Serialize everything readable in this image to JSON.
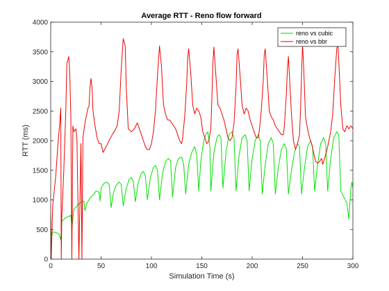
{
  "chart_data": {
    "type": "line",
    "title": "Average RTT - Reno flow forward",
    "xlabel": "Simulation Time (s)",
    "ylabel": "RTT (ms)",
    "xlim": [
      0,
      300
    ],
    "ylim": [
      0,
      4000
    ],
    "xticks": [
      0,
      50,
      100,
      150,
      200,
      250,
      300
    ],
    "yticks": [
      0,
      500,
      1000,
      1500,
      2000,
      2500,
      3000,
      3500,
      4000
    ],
    "grid": false,
    "legend_position": "top-right",
    "series": [
      {
        "name": "reno vs cubic",
        "color": "#00e000",
        "points": [
          [
            0,
            480
          ],
          [
            1,
            380
          ],
          [
            2,
            460
          ],
          [
            5,
            450
          ],
          [
            8,
            430
          ],
          [
            10,
            330
          ],
          [
            11,
            640
          ],
          [
            15,
            700
          ],
          [
            18,
            720
          ],
          [
            20,
            740
          ],
          [
            21,
            520
          ],
          [
            23,
            840
          ],
          [
            26,
            900
          ],
          [
            30,
            960
          ],
          [
            33,
            980
          ],
          [
            34,
            820
          ],
          [
            36,
            950
          ],
          [
            40,
            1050
          ],
          [
            43,
            1100
          ],
          [
            45,
            1150
          ],
          [
            48,
            1130
          ],
          [
            49,
            980
          ],
          [
            50,
            1200
          ],
          [
            53,
            1280
          ],
          [
            56,
            1300
          ],
          [
            58,
            1260
          ],
          [
            60,
            870
          ],
          [
            62,
            1100
          ],
          [
            65,
            1250
          ],
          [
            68,
            1300
          ],
          [
            70,
            1260
          ],
          [
            72,
            900
          ],
          [
            75,
            1200
          ],
          [
            78,
            1350
          ],
          [
            80,
            1380
          ],
          [
            82,
            1320
          ],
          [
            84,
            970
          ],
          [
            87,
            1300
          ],
          [
            90,
            1450
          ],
          [
            92,
            1480
          ],
          [
            94,
            1400
          ],
          [
            96,
            1000
          ],
          [
            99,
            1380
          ],
          [
            102,
            1550
          ],
          [
            104,
            1580
          ],
          [
            106,
            1500
          ],
          [
            108,
            1000
          ],
          [
            111,
            1450
          ],
          [
            114,
            1650
          ],
          [
            117,
            1700
          ],
          [
            119,
            1650
          ],
          [
            121,
            1050
          ],
          [
            124,
            1550
          ],
          [
            127,
            1700
          ],
          [
            130,
            1720
          ],
          [
            132,
            1600
          ],
          [
            134,
            1100
          ],
          [
            137,
            1600
          ],
          [
            140,
            1800
          ],
          [
            143,
            1900
          ],
          [
            145,
            1750
          ],
          [
            147,
            1150
          ],
          [
            149,
            1650
          ],
          [
            152,
            2000
          ],
          [
            154,
            2100
          ],
          [
            156,
            2150
          ],
          [
            158,
            1900
          ],
          [
            159,
            1150
          ],
          [
            162,
            1800
          ],
          [
            165,
            2050
          ],
          [
            167,
            2100
          ],
          [
            169,
            2050
          ],
          [
            171,
            1200
          ],
          [
            174,
            1800
          ],
          [
            177,
            2100
          ],
          [
            180,
            2150
          ],
          [
            182,
            2050
          ],
          [
            184,
            1150
          ],
          [
            187,
            1750
          ],
          [
            190,
            2050
          ],
          [
            193,
            2100
          ],
          [
            195,
            2000
          ],
          [
            197,
            1150
          ],
          [
            200,
            1700
          ],
          [
            203,
            2000
          ],
          [
            206,
            2100
          ],
          [
            208,
            2000
          ],
          [
            210,
            1100
          ],
          [
            213,
            1600
          ],
          [
            216,
            1950
          ],
          [
            219,
            2050
          ],
          [
            221,
            1950
          ],
          [
            223,
            1100
          ],
          [
            226,
            1550
          ],
          [
            229,
            1850
          ],
          [
            232,
            1950
          ],
          [
            234,
            1850
          ],
          [
            236,
            1100
          ],
          [
            239,
            1500
          ],
          [
            242,
            1800
          ],
          [
            245,
            1950
          ],
          [
            247,
            1900
          ],
          [
            249,
            1100
          ],
          [
            252,
            1550
          ],
          [
            255,
            1900
          ],
          [
            258,
            2000
          ],
          [
            260,
            1900
          ],
          [
            262,
            1150
          ],
          [
            265,
            1600
          ],
          [
            268,
            1950
          ],
          [
            271,
            2050
          ],
          [
            273,
            1950
          ],
          [
            275,
            1150
          ],
          [
            278,
            1700
          ],
          [
            281,
            2050
          ],
          [
            284,
            2150
          ],
          [
            286,
            2100
          ],
          [
            288,
            1150
          ],
          [
            291,
            1050
          ],
          [
            294,
            950
          ],
          [
            296,
            680
          ],
          [
            298,
            1200
          ],
          [
            299,
            1300
          ],
          [
            300,
            1200
          ]
        ]
      },
      {
        "name": "reno vs bbr",
        "color": "#ee0000",
        "points": [
          [
            0,
            750
          ],
          [
            0.5,
            0
          ],
          [
            1,
            300
          ],
          [
            2,
            900
          ],
          [
            5,
            1400
          ],
          [
            7,
            1900
          ],
          [
            9,
            2300
          ],
          [
            10,
            2550
          ],
          [
            10.5,
            0
          ],
          [
            11,
            700
          ],
          [
            13,
            1500
          ],
          [
            15,
            2500
          ],
          [
            16,
            3300
          ],
          [
            18,
            3420
          ],
          [
            19,
            3100
          ],
          [
            20,
            2400
          ],
          [
            21,
            0
          ],
          [
            22,
            2250
          ],
          [
            23,
            2150
          ],
          [
            25,
            2200
          ],
          [
            26,
            2050
          ],
          [
            28,
            0
          ],
          [
            30,
            1950
          ],
          [
            31,
            0
          ],
          [
            32,
            2050
          ],
          [
            34,
            2300
          ],
          [
            37,
            2550
          ],
          [
            38,
            2580
          ],
          [
            39,
            2900
          ],
          [
            40,
            3050
          ],
          [
            41,
            2900
          ],
          [
            42,
            2500
          ],
          [
            44,
            2250
          ],
          [
            46,
            2050
          ],
          [
            48,
            1950
          ],
          [
            50,
            1950
          ],
          [
            52,
            1800
          ],
          [
            55,
            1900
          ],
          [
            58,
            2000
          ],
          [
            61,
            2100
          ],
          [
            63,
            2150
          ],
          [
            66,
            2250
          ],
          [
            68,
            2500
          ],
          [
            70,
            3200
          ],
          [
            72,
            3720
          ],
          [
            74,
            3600
          ],
          [
            75,
            2900
          ],
          [
            77,
            2200
          ],
          [
            80,
            2150
          ],
          [
            83,
            2200
          ],
          [
            86,
            2300
          ],
          [
            88,
            2200
          ],
          [
            90,
            2100
          ],
          [
            92,
            2000
          ],
          [
            94,
            1900
          ],
          [
            96,
            1850
          ],
          [
            98,
            1850
          ],
          [
            100,
            1950
          ],
          [
            102,
            2150
          ],
          [
            104,
            2500
          ],
          [
            106,
            3100
          ],
          [
            108,
            3600
          ],
          [
            110,
            3250
          ],
          [
            112,
            2600
          ],
          [
            114,
            2450
          ],
          [
            116,
            2350
          ],
          [
            118,
            2350
          ],
          [
            120,
            2300
          ],
          [
            122,
            2250
          ],
          [
            124,
            2200
          ],
          [
            126,
            2100
          ],
          [
            128,
            2000
          ],
          [
            130,
            1950
          ],
          [
            131,
            2050
          ],
          [
            133,
            2400
          ],
          [
            135,
            2950
          ],
          [
            136,
            3400
          ],
          [
            137,
            3550
          ],
          [
            139,
            3150
          ],
          [
            141,
            2600
          ],
          [
            143,
            2450
          ],
          [
            145,
            2550
          ],
          [
            147,
            2500
          ],
          [
            149,
            2400
          ],
          [
            151,
            2150
          ],
          [
            153,
            2050
          ],
          [
            155,
            1950
          ],
          [
            157,
            2000
          ],
          [
            159,
            2200
          ],
          [
            160,
            2700
          ],
          [
            161,
            3300
          ],
          [
            162,
            3580
          ],
          [
            164,
            3100
          ],
          [
            166,
            2600
          ],
          [
            168,
            2550
          ],
          [
            170,
            2450
          ],
          [
            172,
            2350
          ],
          [
            174,
            2200
          ],
          [
            176,
            2050
          ],
          [
            178,
            2000
          ],
          [
            180,
            2050
          ],
          [
            182,
            2300
          ],
          [
            184,
            2900
          ],
          [
            185,
            3450
          ],
          [
            186,
            3550
          ],
          [
            188,
            3100
          ],
          [
            190,
            2600
          ],
          [
            192,
            2450
          ],
          [
            194,
            2550
          ],
          [
            196,
            2500
          ],
          [
            198,
            2350
          ],
          [
            200,
            2250
          ],
          [
            202,
            2150
          ],
          [
            204,
            2050
          ],
          [
            206,
            2050
          ],
          [
            207,
            2150
          ],
          [
            209,
            2500
          ],
          [
            211,
            3000
          ],
          [
            212,
            3450
          ],
          [
            213,
            3550
          ],
          [
            215,
            3050
          ],
          [
            217,
            2500
          ],
          [
            219,
            2400
          ],
          [
            221,
            2350
          ],
          [
            223,
            2250
          ],
          [
            225,
            2200
          ],
          [
            227,
            2150
          ],
          [
            229,
            2100
          ],
          [
            231,
            2100
          ],
          [
            232,
            2250
          ],
          [
            234,
            2800
          ],
          [
            235,
            3200
          ],
          [
            236,
            3420
          ],
          [
            237,
            3100
          ],
          [
            239,
            2450
          ],
          [
            241,
            2000
          ],
          [
            243,
            1850
          ],
          [
            245,
            1950
          ],
          [
            247,
            2100
          ],
          [
            248,
            2500
          ],
          [
            249,
            3100
          ],
          [
            250,
            3620
          ],
          [
            251,
            3300
          ],
          [
            253,
            2400
          ],
          [
            255,
            2200
          ],
          [
            257,
            2050
          ],
          [
            259,
            1950
          ],
          [
            261,
            1800
          ],
          [
            263,
            1650
          ],
          [
            265,
            1620
          ],
          [
            267,
            1650
          ],
          [
            269,
            1700
          ],
          [
            270,
            1600
          ],
          [
            272,
            1700
          ],
          [
            275,
            1900
          ],
          [
            278,
            2150
          ],
          [
            280,
            2450
          ],
          [
            282,
            3050
          ],
          [
            284,
            3550
          ],
          [
            285,
            3650
          ],
          [
            286,
            3350
          ],
          [
            288,
            2600
          ],
          [
            290,
            2200
          ],
          [
            292,
            2150
          ],
          [
            294,
            2250
          ],
          [
            296,
            2200
          ],
          [
            298,
            2250
          ],
          [
            300,
            2200
          ]
        ]
      }
    ]
  }
}
